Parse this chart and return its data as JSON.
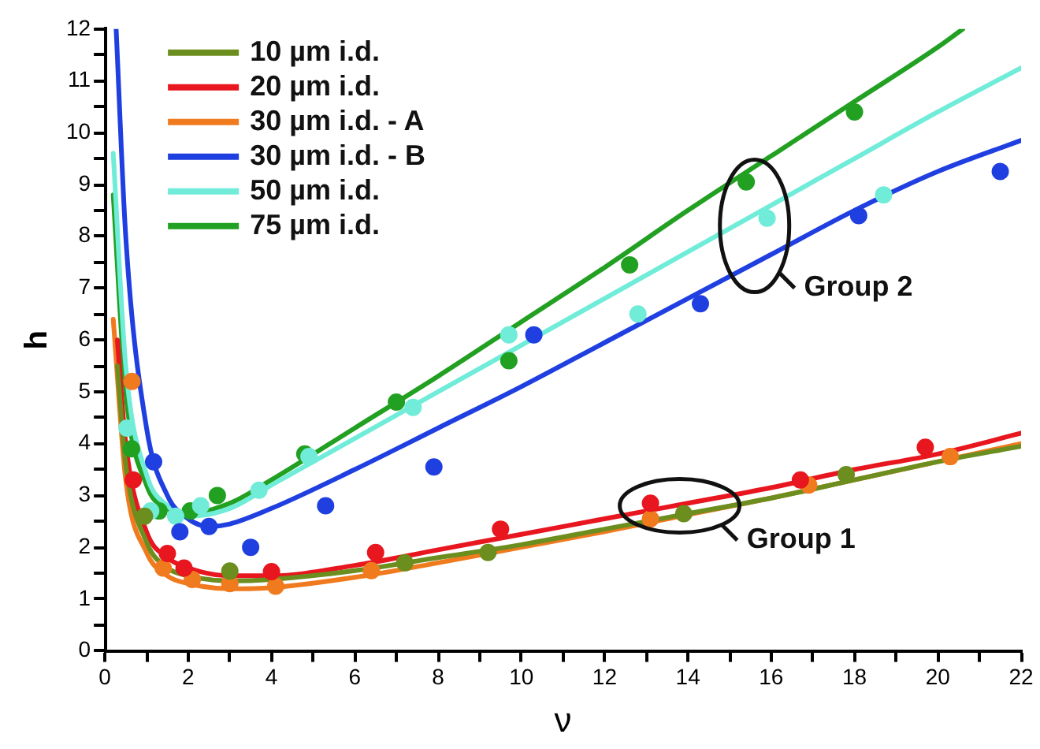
{
  "chart_data": {
    "type": "line",
    "xlabel": "ν",
    "ylabel": "h",
    "legend": "top left",
    "grid": false,
    "xlim": [
      0,
      22
    ],
    "ylim": [
      0,
      12
    ],
    "xticks": [
      0,
      {
        "value": 1,
        "label": null
      },
      2,
      {
        "value": 3,
        "label": null
      },
      4,
      {
        "value": 5,
        "label": null
      },
      6,
      {
        "value": 7,
        "label": null
      },
      8,
      {
        "value": 9,
        "label": null
      },
      10,
      {
        "value": 11,
        "label": null
      },
      12,
      {
        "value": 13,
        "label": null
      },
      14,
      {
        "value": 15,
        "label": null
      },
      16,
      {
        "value": 17,
        "label": null
      },
      18,
      {
        "value": 19,
        "label": null
      },
      20,
      {
        "value": 21,
        "label": null
      },
      22
    ],
    "yticks": [
      0,
      {
        "value": 0.5,
        "label": null
      },
      1,
      {
        "value": 1.5,
        "label": null
      },
      2,
      {
        "value": 2.5,
        "label": null
      },
      3,
      {
        "value": 3.5,
        "label": null
      },
      4,
      {
        "value": 4.5,
        "label": null
      },
      5,
      {
        "value": 5.5,
        "label": null
      },
      6,
      {
        "value": 6.5,
        "label": null
      },
      7,
      {
        "value": 7.5,
        "label": null
      },
      8,
      {
        "value": 8.5,
        "label": null
      },
      9,
      {
        "value": 9.5,
        "label": null
      },
      10,
      {
        "value": 10.5,
        "label": null
      },
      11,
      {
        "value": 11.5,
        "label": null
      },
      12
    ],
    "series": [
      {
        "name": "10 µm i.d.",
        "color": "#6b8e1e",
        "x": [
          0.3,
          0.5,
          1,
          1.5,
          2,
          3,
          4,
          6,
          8,
          10,
          12,
          14,
          16,
          18,
          20,
          22
        ],
        "values": [
          5.5,
          3.6,
          2.1,
          1.6,
          1.45,
          1.35,
          1.38,
          1.55,
          1.8,
          2.05,
          2.35,
          2.65,
          2.95,
          3.3,
          3.65,
          3.95
        ]
      },
      {
        "name": "20 µm i.d.",
        "color": "#e8161e",
        "x": [
          0.3,
          0.5,
          1,
          1.5,
          2,
          3,
          4,
          6,
          8,
          10,
          12,
          14,
          16,
          18,
          20,
          22
        ],
        "values": [
          6,
          4,
          2.3,
          1.8,
          1.6,
          1.45,
          1.45,
          1.65,
          1.95,
          2.25,
          2.55,
          2.85,
          3.15,
          3.5,
          3.8,
          4.2
        ]
      },
      {
        "name": "30 µm i.d. - A",
        "color": "#f07a1e",
        "x": [
          0.2,
          0.5,
          1,
          1.5,
          2,
          3,
          4,
          6,
          8,
          10,
          12,
          14,
          16,
          18,
          20,
          22
        ],
        "values": [
          6.4,
          3.3,
          1.9,
          1.45,
          1.3,
          1.2,
          1.22,
          1.42,
          1.7,
          2,
          2.3,
          2.63,
          2.95,
          3.3,
          3.65,
          4
        ]
      },
      {
        "name": "30 µm i.d. - B",
        "color": "#1f3fe0",
        "x": [
          0.27,
          0.5,
          1,
          1.5,
          2,
          2.5,
          3,
          4,
          6,
          8,
          10,
          12,
          14,
          16,
          18,
          20,
          22
        ],
        "values": [
          12,
          8,
          4.3,
          3,
          2.55,
          2.4,
          2.45,
          2.75,
          3.5,
          4.3,
          5.1,
          5.95,
          6.8,
          7.65,
          8.5,
          9.25,
          9.85
        ]
      },
      {
        "name": "50 µm i.d.",
        "color": "#70ecd8",
        "x": [
          0.2,
          0.5,
          1,
          1.5,
          2,
          3,
          4,
          6,
          8,
          10,
          12,
          14,
          16,
          18,
          20,
          22
        ],
        "values": [
          9.6,
          5.5,
          3.4,
          2.8,
          2.6,
          2.75,
          3.2,
          4.1,
          5,
          5.9,
          6.8,
          7.7,
          8.6,
          9.5,
          10.4,
          11.25
        ]
      },
      {
        "name": "75 µm i.d.",
        "color": "#22a022",
        "x": [
          0.2,
          0.5,
          1,
          1.5,
          2,
          3,
          4,
          6,
          8,
          10,
          12,
          14,
          16,
          18,
          20,
          20.6
        ],
        "values": [
          8.8,
          5,
          3.2,
          2.75,
          2.65,
          2.85,
          3.3,
          4.3,
          5.3,
          6.35,
          7.4,
          8.5,
          9.55,
          10.6,
          11.65,
          12
        ]
      },
      {
        "type": "scatter",
        "color": "#6b8e1e",
        "x": [
          0.95,
          3,
          7.2,
          9.2,
          13.9,
          17.8
        ],
        "values": [
          2.6,
          1.54,
          1.7,
          1.9,
          2.65,
          3.4
        ]
      },
      {
        "type": "scatter",
        "color": "#e8161e",
        "x": [
          0.68,
          1.5,
          1.9,
          4,
          6.5,
          9.5,
          13.1,
          16.7,
          19.7
        ],
        "values": [
          3.3,
          1.88,
          1.6,
          1.53,
          1.9,
          2.35,
          2.85,
          3.3,
          3.93
        ]
      },
      {
        "type": "scatter",
        "color": "#f07a1e",
        "x": [
          0.65,
          1.4,
          2.1,
          3,
          4.1,
          6.4,
          13.1,
          16.9,
          20.3
        ],
        "values": [
          5.2,
          1.6,
          1.38,
          1.3,
          1.25,
          1.55,
          2.55,
          3.2,
          3.75
        ]
      },
      {
        "type": "scatter",
        "color": "#1f3fe0",
        "x": [
          1.17,
          1.8,
          2.5,
          3.5,
          5.3,
          7.9,
          10.3,
          14.3,
          18.1,
          21.5
        ],
        "values": [
          3.65,
          2.3,
          2.4,
          2,
          2.8,
          3.55,
          6.1,
          6.7,
          8.4,
          9.25
        ]
      },
      {
        "type": "scatter",
        "color": "#70ecd8",
        "x": [
          0.53,
          1.1,
          1.7,
          2.3,
          3.7,
          4.9,
          7.4,
          9.7,
          12.8,
          15.9,
          18.7
        ],
        "values": [
          4.3,
          2.7,
          2.6,
          2.8,
          3.1,
          3.75,
          4.7,
          6.1,
          6.5,
          8.35,
          8.8
        ]
      },
      {
        "type": "scatter",
        "color": "#22a022",
        "x": [
          0.64,
          1.3,
          2.05,
          2.7,
          4.8,
          7,
          9.7,
          12.6,
          15.4,
          18
        ],
        "values": [
          3.9,
          2.7,
          2.7,
          3,
          3.8,
          4.8,
          5.6,
          7.45,
          9.05,
          10.4
        ]
      }
    ],
    "annotations": [
      {
        "text": "Group 1",
        "x": 13.8,
        "y": 2.8
      },
      {
        "text": "Group 2",
        "x": 15.6,
        "y": 8.2
      }
    ]
  }
}
